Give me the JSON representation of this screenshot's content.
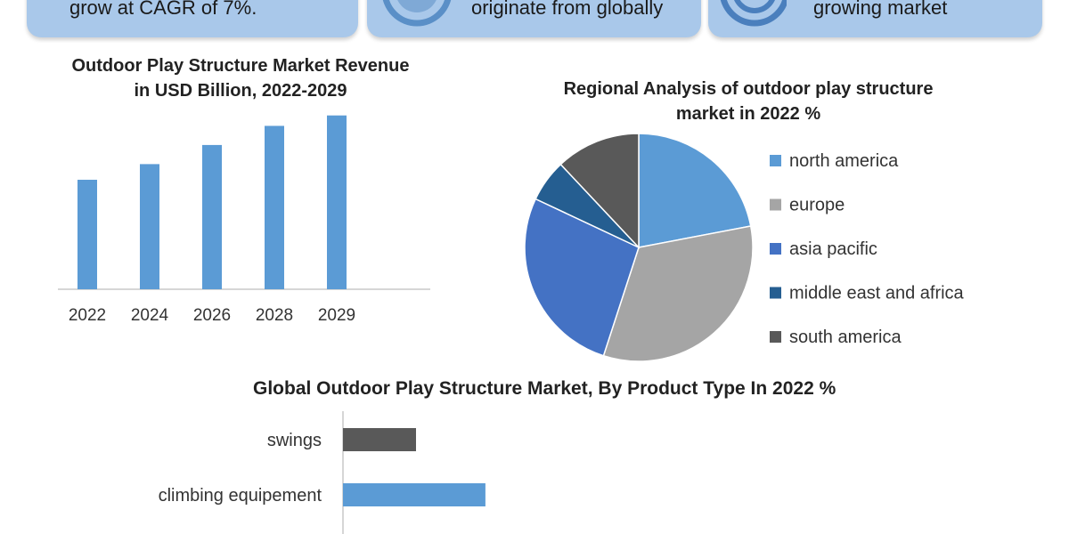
{
  "banners": [
    {
      "text": "grow at CAGR of 7%."
    },
    {
      "text": "originate from globally"
    },
    {
      "text": "growing market"
    }
  ],
  "colors": {
    "banner_bg": "#a9c8ea",
    "bar_blue": "#5b9bd5",
    "north_america": "#5b9bd5",
    "europe": "#a5a5a5",
    "asia_pacific": "#4472c4",
    "middle_east_africa": "#255e91",
    "south_america": "#595959",
    "swings": "#595959",
    "climbing": "#5b9bd5"
  },
  "chart_data": [
    {
      "type": "bar",
      "title": "Outdoor Play Structure Market Revenue in USD Billion, 2022-2029",
      "categories": [
        "2022",
        "2024",
        "2026",
        "2028",
        "2029"
      ],
      "values": [
        3.15,
        3.6,
        4.15,
        4.7,
        5.0
      ],
      "ylim": [
        0,
        5.3
      ],
      "xlabel": "",
      "ylabel": ""
    },
    {
      "type": "pie",
      "title": "Regional Analysis of outdoor play structure market in 2022 %",
      "categories": [
        "north america",
        "europe",
        "asia pacific",
        "middle east and africa",
        "south america"
      ],
      "values": [
        22,
        33,
        27,
        6,
        12
      ],
      "legend": "right"
    },
    {
      "type": "bar",
      "orientation": "horizontal",
      "title": "Global Outdoor Play Structure Market, By Product Type In 2022 %",
      "categories": [
        "swings",
        "climbing equipement"
      ],
      "values": [
        10,
        19.5
      ],
      "xlim": [
        0,
        60
      ]
    }
  ]
}
